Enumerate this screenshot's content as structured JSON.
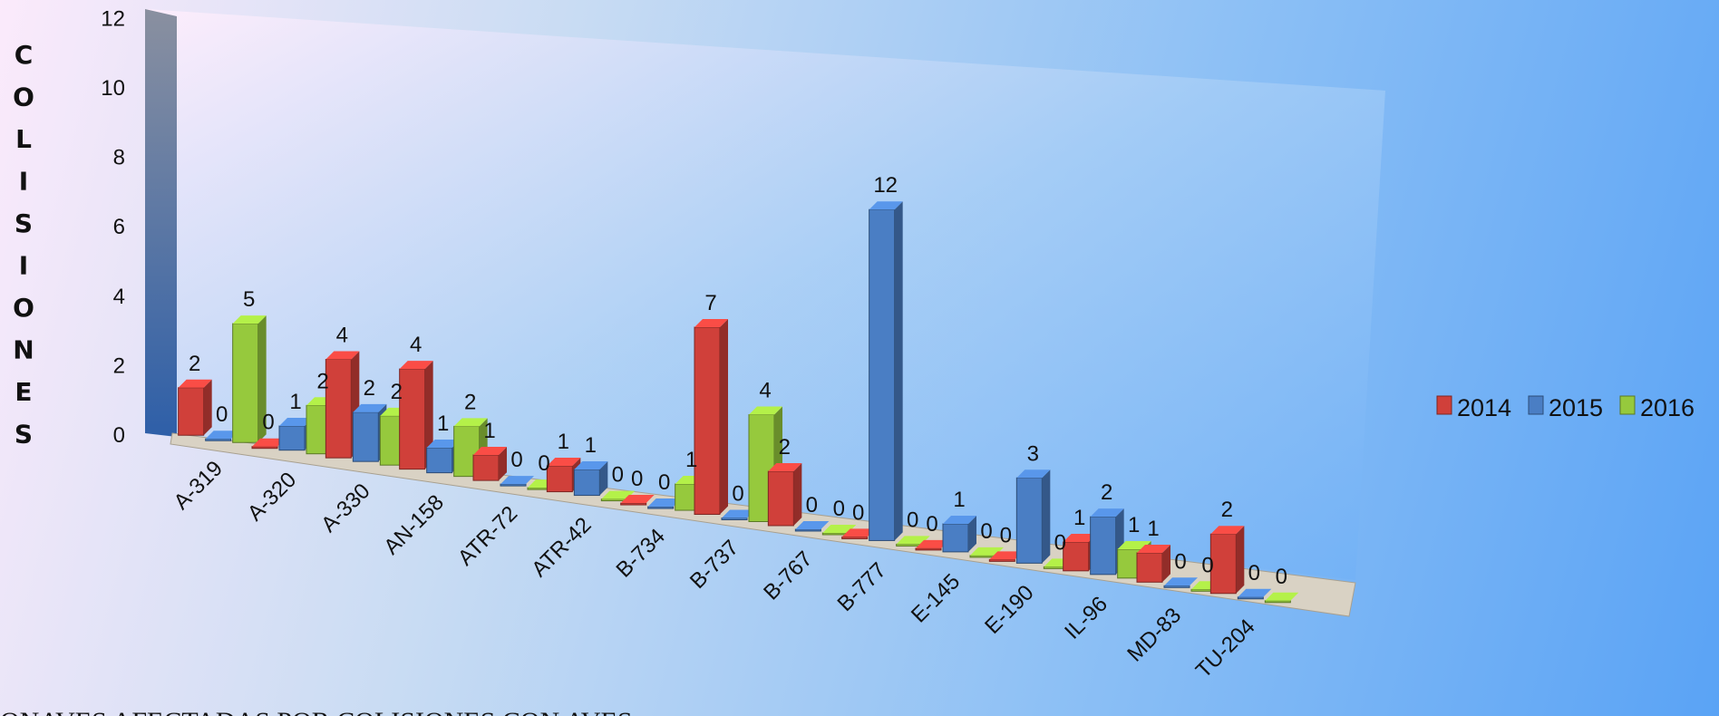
{
  "chart_data": {
    "type": "bar",
    "title": "",
    "ylabel": "COLISIONES",
    "xlabel": "",
    "ylim": [
      0,
      12
    ],
    "yticks": [
      0,
      2,
      4,
      6,
      8,
      10,
      12
    ],
    "categories": [
      "A-319",
      "A-320",
      "A-330",
      "AN-158",
      "ATR-72",
      "ATR-42",
      "B-734",
      "B-737",
      "B-767",
      "B-777",
      "E-145",
      "E-190",
      "IL-96",
      "MD-83",
      "TU-204"
    ],
    "series": [
      {
        "name": "2014",
        "color": "#d0403a",
        "values": [
          2,
          0,
          4,
          4,
          1,
          1,
          0,
          7,
          2,
          0,
          0,
          0,
          1,
          1,
          2
        ]
      },
      {
        "name": "2015",
        "color": "#4a7ec4",
        "values": [
          0,
          1,
          2,
          1,
          0,
          1,
          0,
          0,
          0,
          12,
          1,
          3,
          2,
          0,
          0
        ]
      },
      {
        "name": "2016",
        "color": "#96c93d",
        "values": [
          5,
          2,
          2,
          2,
          0,
          0,
          1,
          4,
          0,
          0,
          0,
          0,
          1,
          0,
          0
        ]
      }
    ],
    "legend_position": "right",
    "grid": false,
    "caption": "ONAVES AFECTADAS POR COLISIONES CON AVES"
  }
}
